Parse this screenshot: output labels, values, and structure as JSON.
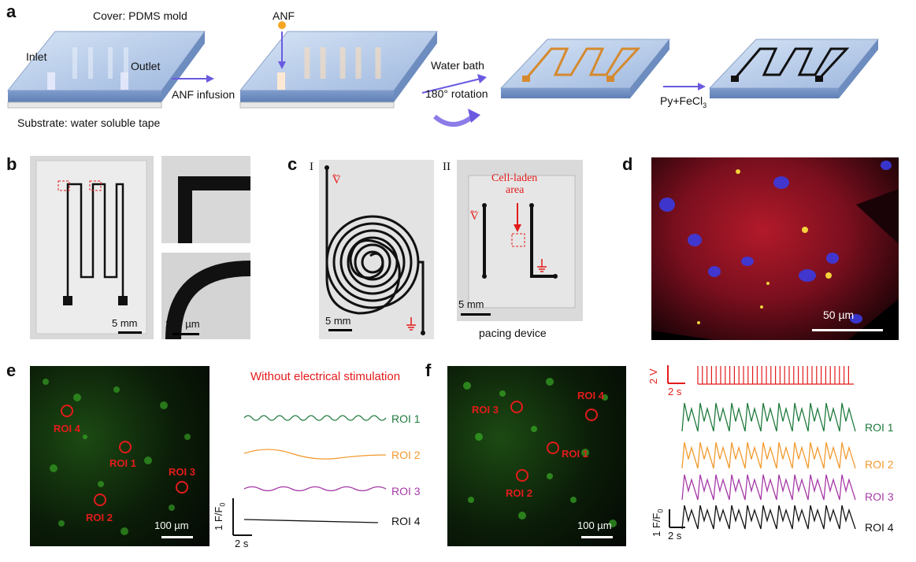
{
  "panels": {
    "a": {
      "label": "a",
      "cover": "Cover: PDMS mold",
      "inlet": "Inlet",
      "outlet": "Outlet",
      "substrate": "Substrate: water soluble tape",
      "anf": "ANF",
      "anf_infusion": "ANF infusion",
      "water_bath": "Water bath",
      "rotation": "180° rotation",
      "py_fecl3": "Py+FeCl",
      "py_sub": "3"
    },
    "b": {
      "label": "b",
      "scale1": "5 mm",
      "scale2": "200 µm"
    },
    "c": {
      "label": "c",
      "roman1": "I",
      "roman2": "II",
      "v_symbol": "V",
      "scale1": "5 mm",
      "scale2": "5 mm",
      "cell_laden": "Cell-laden",
      "area": "area",
      "pacing": "pacing device"
    },
    "d": {
      "label": "d",
      "scale": "50 µm"
    },
    "e": {
      "label": "e",
      "title": "Without electrical stimulation",
      "rois": [
        "ROI 4",
        "ROI 1",
        "ROI 3",
        "ROI 2"
      ],
      "scale": "100 µm",
      "traces": [
        "ROI 1",
        "ROI 2",
        "ROI 3",
        "ROI 4"
      ],
      "y_scale": "1 F/F",
      "y_sub": "0",
      "t_scale": "2 s"
    },
    "f": {
      "label": "f",
      "rois": [
        "ROI 3",
        "ROI 4",
        "ROI 1",
        "ROI 2"
      ],
      "scale": "100 µm",
      "traces": [
        "ROI 1",
        "ROI 2",
        "ROI 3",
        "ROI 4"
      ],
      "v_scale": "2 V",
      "t_scale_top": "2 s",
      "y_scale": "1 F/F",
      "y_sub": "0",
      "t_scale": "2 s"
    }
  },
  "colors": {
    "roi1": "#1f7a3c",
    "roi2": "#f29a2e",
    "roi3": "#a63aa6",
    "roi4": "#111111",
    "red": "#e31b1b",
    "arrow": "#6a5ae0"
  }
}
